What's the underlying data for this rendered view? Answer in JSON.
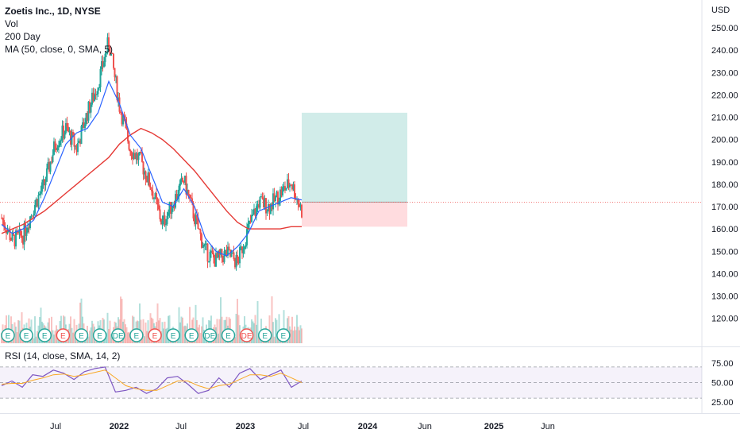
{
  "legend": {
    "symbol": "Zoetis Inc., 1D, NYSE",
    "vol": "Vol",
    "ma200": "200 Day",
    "ma50": "MA (50, close, 0, SMA, 5)"
  },
  "rsi_label": "RSI (14, close, SMA, 14, 2)",
  "currency": "USD",
  "colors": {
    "up": "#26a69a",
    "down": "#ef5350",
    "ma200": "#e53935",
    "ma50": "#2962ff",
    "rsi": "#7e57c2",
    "rsi_ma": "#f9a825",
    "target_zone": "#b2dfdb",
    "stop_zone": "#ffcdd2",
    "earnings_badge": "#26a69a",
    "earnings_badge_red": "#ef5350"
  },
  "chart_data": [
    {
      "type": "candlestick",
      "title": "Zoetis Inc., 1D, NYSE",
      "ylabel": "USD",
      "ylim": [
        113,
        260
      ],
      "y_ticks": [
        "250.00",
        "240.00",
        "230.00",
        "220.00",
        "210.00",
        "200.00",
        "190.00",
        "180.00",
        "170.00",
        "160.00",
        "150.00",
        "140.00",
        "130.00",
        "120.00"
      ],
      "x_ticks": [
        "Jul",
        "2022",
        "Jul",
        "2023",
        "Jul",
        "2024",
        "Jun",
        "2025",
        "Jun"
      ],
      "price_series": {
        "name": "Close",
        "dates": [
          "2021-02",
          "2021-03",
          "2021-04",
          "2021-05",
          "2021-06",
          "2021-07",
          "2021-08",
          "2021-09",
          "2021-10",
          "2021-11",
          "2021-12",
          "2022-01",
          "2022-02",
          "2022-03",
          "2022-04",
          "2022-05",
          "2022-06",
          "2022-07",
          "2022-08",
          "2022-09",
          "2022-10",
          "2022-11",
          "2022-12",
          "2023-01",
          "2023-02",
          "2023-03",
          "2023-04",
          "2023-05",
          "2023-06"
        ],
        "values": [
          165,
          155,
          157,
          170,
          180,
          198,
          205,
          196,
          212,
          225,
          244,
          215,
          196,
          190,
          178,
          162,
          172,
          182,
          165,
          150,
          146,
          149,
          145,
          160,
          172,
          170,
          176,
          181,
          168
        ]
      },
      "ma_200": {
        "name": "200 Day",
        "values": [
          158,
          160,
          162,
          165,
          168,
          172,
          176,
          180,
          184,
          188,
          192,
          198,
          202,
          205,
          203,
          200,
          196,
          191,
          186,
          180,
          174,
          168,
          163,
          160,
          160,
          160,
          160,
          161,
          161
        ]
      },
      "ma_50": {
        "name": "MA (50, close, 0, SMA, 5)",
        "values": [
          162,
          158,
          160,
          164,
          174,
          186,
          198,
          203,
          205,
          212,
          226,
          216,
          202,
          196,
          184,
          172,
          170,
          178,
          170,
          156,
          150,
          148,
          152,
          158,
          168,
          170,
          172,
          174,
          173
        ]
      },
      "last_price": 172,
      "position_tool": {
        "entry": 172,
        "target": 212,
        "stop": 161
      },
      "earnings_markers": [
        "E",
        "E",
        "E",
        "E",
        "E",
        "E",
        "DE",
        "E",
        "E",
        "E",
        "E",
        "DE",
        "E",
        "DE",
        "E",
        "E"
      ]
    },
    {
      "type": "line",
      "title": "RSI (14, close, SMA, 14, 2)",
      "ylim": [
        20,
        80
      ],
      "y_ticks": [
        "75.00",
        "50.00",
        "25.00"
      ],
      "bands": {
        "upper": 70,
        "middle": 50,
        "lower": 30
      },
      "series": [
        {
          "name": "RSI",
          "values": [
            46,
            52,
            44,
            60,
            58,
            66,
            62,
            54,
            64,
            68,
            70,
            38,
            40,
            44,
            36,
            42,
            56,
            58,
            48,
            36,
            40,
            56,
            44,
            62,
            68,
            54,
            60,
            66,
            44,
            52
          ]
        },
        {
          "name": "RSI-based MA",
          "values": [
            48,
            49,
            49,
            53,
            56,
            60,
            61,
            58,
            60,
            63,
            66,
            56,
            46,
            42,
            40,
            40,
            46,
            52,
            52,
            46,
            42,
            46,
            48,
            54,
            60,
            60,
            58,
            62,
            56,
            50
          ]
        }
      ]
    }
  ]
}
